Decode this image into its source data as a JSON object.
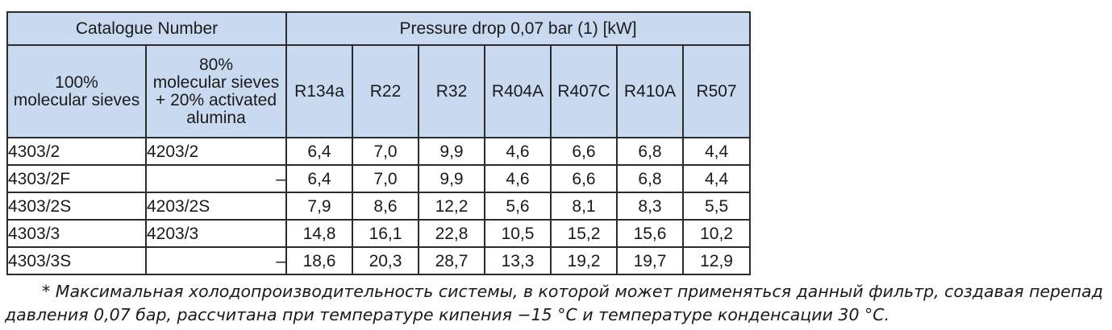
{
  "table": {
    "catalogue_header": "Catalogue Number",
    "pressure_header": "Pressure drop 0,07 bar (1) [kW]",
    "col_100": "100%\nmolecular sieves",
    "col_80": "80%\nmolecular sieves\n+ 20% activated\nalumina",
    "refrigerants": [
      "R134a",
      "R22",
      "R32",
      "R404A",
      "R407C",
      "R410A",
      "R507"
    ],
    "rows": [
      {
        "cat100": "4303/2",
        "cat80": "4203/2",
        "values": [
          "6,4",
          "7,0",
          "9,9",
          "4,6",
          "6,6",
          "6,8",
          "4,4"
        ]
      },
      {
        "cat100": "4303/2F",
        "cat80": "–",
        "values": [
          "6,4",
          "7,0",
          "9,9",
          "4,6",
          "6,6",
          "6,8",
          "4,4"
        ]
      },
      {
        "cat100": "4303/2S",
        "cat80": "4203/2S",
        "values": [
          "7,9",
          "8,6",
          "12,2",
          "5,6",
          "8,1",
          "8,3",
          "5,5"
        ]
      },
      {
        "cat100": "4303/3",
        "cat80": "4203/3",
        "values": [
          "14,8",
          "16,1",
          "22,8",
          "10,5",
          "15,2",
          "15,6",
          "10,2"
        ]
      },
      {
        "cat100": "4303/3S",
        "cat80": "–",
        "values": [
          "18,6",
          "20,3",
          "28,7",
          "13,3",
          "19,2",
          "19,7",
          "12,9"
        ]
      }
    ]
  },
  "footnote": {
    "line1": "* Максимальная холодопроизводительность системы, в которой может применяться данный фильтр, создавая перепад",
    "line2": "давления 0,07 бар, рассчитана при температуре кипения −15 °С и температуре конденсации 30 °С."
  }
}
